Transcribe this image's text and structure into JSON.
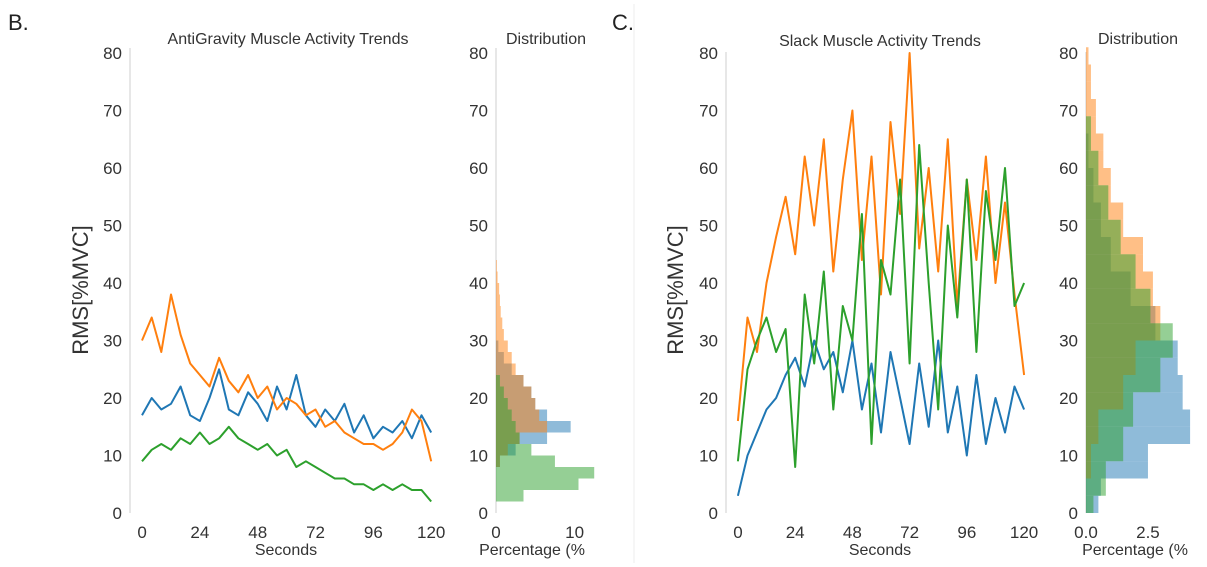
{
  "panels": {
    "b": {
      "label": "B."
    },
    "c": {
      "label": "C."
    }
  },
  "colors": {
    "blue": "#1f77b4",
    "orange": "#ff7f0e",
    "green": "#2ca02c"
  },
  "chart_data": [
    {
      "id": "b-trend",
      "type": "line",
      "title": "AntiGravity Muscle Activity Trends",
      "xlabel": "Seconds",
      "ylabel": "RMS[%MVC]",
      "xlim": [
        -5,
        122
      ],
      "ylim": [
        0,
        80
      ],
      "xticks": [
        "0",
        "24",
        "48",
        "72",
        "96",
        "120"
      ],
      "yticks": [
        "0",
        "10",
        "20",
        "30",
        "40",
        "50",
        "60",
        "70",
        "80"
      ],
      "grid": false,
      "x": [
        0,
        4,
        8,
        12,
        16,
        20,
        24,
        28,
        32,
        36,
        40,
        44,
        48,
        52,
        56,
        60,
        64,
        68,
        72,
        76,
        80,
        84,
        88,
        92,
        96,
        100,
        104,
        108,
        112,
        116,
        120
      ],
      "series": [
        {
          "color": "blue",
          "values": [
            17,
            20,
            18,
            19,
            22,
            17,
            16,
            20,
            25,
            18,
            17,
            21,
            19,
            16,
            22,
            18,
            24,
            17,
            15,
            18,
            16,
            19,
            14,
            17,
            13,
            15,
            14,
            16,
            13,
            17,
            14
          ]
        },
        {
          "color": "orange",
          "values": [
            30,
            34,
            28,
            38,
            31,
            26,
            24,
            22,
            27,
            23,
            21,
            24,
            20,
            22,
            18,
            20,
            19,
            17,
            18,
            15,
            16,
            14,
            13,
            12,
            12,
            11,
            12,
            14,
            18,
            16,
            9
          ]
        },
        {
          "color": "green",
          "values": [
            9,
            11,
            12,
            11,
            13,
            12,
            14,
            12,
            13,
            15,
            13,
            12,
            11,
            12,
            10,
            11,
            8,
            9,
            8,
            7,
            6,
            6,
            5,
            5,
            4,
            5,
            4,
            5,
            4,
            4,
            2
          ]
        }
      ]
    },
    {
      "id": "b-dist",
      "type": "bar",
      "orientation": "horizontal",
      "title": "Distribution",
      "xlabel": "Percentage (%",
      "xlim": [
        0,
        14
      ],
      "xticks": [
        "0",
        "10"
      ],
      "yticks": [
        "0",
        "10",
        "20",
        "30",
        "40",
        "50",
        "60",
        "70",
        "80"
      ],
      "ylim": [
        0,
        80
      ],
      "bins": [
        [
          0,
          2
        ],
        [
          2,
          4
        ],
        [
          4,
          6
        ],
        [
          6,
          8
        ],
        [
          8,
          10
        ],
        [
          10,
          12
        ],
        [
          12,
          14
        ],
        [
          14,
          16
        ],
        [
          16,
          18
        ],
        [
          18,
          20
        ],
        [
          20,
          22
        ],
        [
          22,
          24
        ],
        [
          24,
          26
        ],
        [
          26,
          28
        ],
        [
          28,
          30
        ],
        [
          30,
          32
        ],
        [
          32,
          34
        ],
        [
          34,
          36
        ],
        [
          36,
          38
        ],
        [
          38,
          40
        ],
        [
          40,
          42
        ],
        [
          42,
          44
        ]
      ],
      "series": [
        {
          "color": "blue",
          "values": [
            0,
            0,
            0,
            0,
            0.5,
            2.5,
            6.5,
            9.5,
            6.5,
            5.0,
            4.5,
            3.5,
            2.0,
            1.0,
            0.3,
            0,
            0,
            0,
            0,
            0,
            0,
            0
          ]
        },
        {
          "color": "orange",
          "values": [
            0,
            0,
            0,
            0,
            0.5,
            1.5,
            3.0,
            6.5,
            5.5,
            5.0,
            4.5,
            3.5,
            2.5,
            2.0,
            1.5,
            1.0,
            0.8,
            0.6,
            0.5,
            0.4,
            0.2,
            0.1
          ]
        },
        {
          "color": "green",
          "values": [
            0,
            3.5,
            10.5,
            12.5,
            7.5,
            4.5,
            3.0,
            2.5,
            2.0,
            1.5,
            1.0,
            0.5,
            0,
            0,
            0,
            0,
            0,
            0,
            0,
            0,
            0,
            0
          ]
        }
      ]
    },
    {
      "id": "c-trend",
      "type": "line",
      "title": "Slack Muscle Activity Trends",
      "xlabel": "Seconds",
      "ylabel": "RMS[%MVC]",
      "xlim": [
        -5,
        125
      ],
      "ylim": [
        0,
        80
      ],
      "xticks": [
        "0",
        "24",
        "48",
        "72",
        "96",
        "120"
      ],
      "yticks": [
        "0",
        "10",
        "20",
        "30",
        "40",
        "50",
        "60",
        "70",
        "80"
      ],
      "grid": false,
      "x": [
        0,
        4,
        8,
        12,
        16,
        20,
        24,
        28,
        32,
        36,
        40,
        44,
        48,
        52,
        56,
        60,
        64,
        68,
        72,
        76,
        80,
        84,
        88,
        92,
        96,
        100,
        104,
        108,
        112,
        116,
        120
      ],
      "series": [
        {
          "color": "blue",
          "values": [
            3,
            10,
            14,
            18,
            20,
            24,
            27,
            22,
            30,
            25,
            28,
            21,
            30,
            18,
            26,
            14,
            28,
            20,
            12,
            26,
            15,
            30,
            14,
            22,
            10,
            24,
            12,
            20,
            14,
            22,
            18
          ]
        },
        {
          "color": "orange",
          "values": [
            16,
            34,
            28,
            40,
            48,
            55,
            45,
            62,
            50,
            65,
            42,
            58,
            70,
            44,
            62,
            38,
            68,
            52,
            80,
            46,
            60,
            42,
            65,
            36,
            58,
            44,
            62,
            40,
            54,
            38,
            24
          ]
        },
        {
          "color": "green",
          "values": [
            9,
            25,
            30,
            34,
            28,
            32,
            8,
            38,
            26,
            42,
            18,
            36,
            30,
            52,
            12,
            44,
            38,
            58,
            26,
            64,
            40,
            18,
            50,
            34,
            58,
            28,
            56,
            44,
            60,
            36,
            40
          ]
        }
      ]
    },
    {
      "id": "c-dist",
      "type": "bar",
      "orientation": "horizontal",
      "title": "Distribution",
      "xlabel": "Percentage (%",
      "xlim": [
        0,
        4.6
      ],
      "xticks": [
        "0.0",
        "2.5"
      ],
      "yticks": [
        "0",
        "10",
        "20",
        "30",
        "40",
        "50",
        "60",
        "70",
        "80"
      ],
      "ylim": [
        0,
        80
      ],
      "bins": [
        [
          0,
          3
        ],
        [
          3,
          6
        ],
        [
          6,
          9
        ],
        [
          9,
          12
        ],
        [
          12,
          15
        ],
        [
          15,
          18
        ],
        [
          18,
          21
        ],
        [
          21,
          24
        ],
        [
          24,
          27
        ],
        [
          27,
          30
        ],
        [
          30,
          33
        ],
        [
          33,
          36
        ],
        [
          36,
          39
        ],
        [
          39,
          42
        ],
        [
          42,
          45
        ],
        [
          45,
          48
        ],
        [
          48,
          51
        ],
        [
          51,
          54
        ],
        [
          54,
          57
        ],
        [
          57,
          60
        ],
        [
          60,
          63
        ],
        [
          63,
          66
        ],
        [
          66,
          69
        ],
        [
          69,
          72
        ],
        [
          72,
          75
        ],
        [
          75,
          78
        ],
        [
          78,
          81
        ]
      ],
      "series": [
        {
          "color": "blue",
          "values": [
            0.5,
            0.6,
            2.5,
            2.5,
            4.2,
            4.2,
            3.9,
            3.9,
            3.7,
            3.7,
            2.8,
            2.8,
            1.8,
            1.8,
            1.0,
            1.0,
            0.6,
            0.6,
            0.3,
            0.3,
            0.1,
            0.1,
            0,
            0,
            0,
            0,
            0
          ]
        },
        {
          "color": "orange",
          "values": [
            0,
            0,
            0.2,
            0.2,
            0.5,
            0.5,
            1.5,
            1.5,
            2.0,
            2.0,
            3.0,
            3.0,
            2.7,
            2.7,
            2.3,
            2.3,
            1.5,
            1.5,
            1.0,
            1.0,
            0.7,
            0.7,
            0.4,
            0.4,
            0.2,
            0.2,
            0.1
          ]
        },
        {
          "color": "green",
          "values": [
            0.3,
            0.8,
            0.8,
            1.5,
            1.5,
            1.9,
            1.9,
            3.0,
            3.0,
            3.5,
            3.5,
            2.6,
            2.6,
            2.0,
            2.0,
            1.4,
            1.4,
            0.9,
            0.9,
            0.5,
            0.5,
            0.2,
            0.2,
            0,
            0,
            0,
            0
          ]
        }
      ]
    }
  ]
}
